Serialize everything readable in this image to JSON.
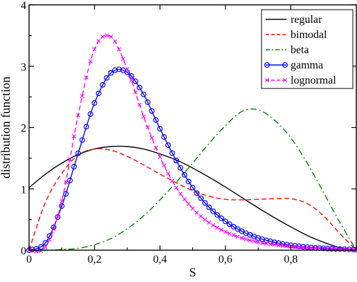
{
  "chart_data": {
    "type": "line",
    "xlabel": "S",
    "ylabel": "distribution function",
    "xlim": [
      0,
      1
    ],
    "ylim": [
      0,
      4
    ],
    "xticks": [
      {
        "value": 0,
        "label": "0"
      },
      {
        "value": 0.2,
        "label": "0,2"
      },
      {
        "value": 0.4,
        "label": "0,4"
      },
      {
        "value": 0.6,
        "label": "0,6"
      },
      {
        "value": 0.8,
        "label": "0,8"
      }
    ],
    "yticks": [
      {
        "value": 0,
        "label": "0"
      },
      {
        "value": 1,
        "label": "1"
      },
      {
        "value": 2,
        "label": "2"
      },
      {
        "value": 3,
        "label": "3"
      },
      {
        "value": 4,
        "label": "4"
      }
    ],
    "legend_position": "top-right",
    "grid": false,
    "series": [
      {
        "name": "regular",
        "color": "#000000",
        "dash": "solid",
        "marker": "none",
        "x": [
          0,
          0.05,
          0.1,
          0.15,
          0.2,
          0.25,
          0.3,
          0.35,
          0.4,
          0.45,
          0.5,
          0.55,
          0.6,
          0.65,
          0.7,
          0.75,
          0.8,
          0.85,
          0.9,
          0.95,
          1.0
        ],
        "y": [
          1.02,
          1.24,
          1.42,
          1.56,
          1.65,
          1.69,
          1.69,
          1.65,
          1.57,
          1.47,
          1.34,
          1.19,
          1.03,
          0.86,
          0.69,
          0.53,
          0.38,
          0.24,
          0.13,
          0.04,
          0.0
        ]
      },
      {
        "name": "bimodal",
        "color": "#ff0000",
        "dash": "dashed",
        "marker": "none",
        "x": [
          0,
          0.05,
          0.1,
          0.15,
          0.2,
          0.25,
          0.3,
          0.35,
          0.4,
          0.45,
          0.5,
          0.55,
          0.6,
          0.65,
          0.7,
          0.75,
          0.8,
          0.85,
          0.9,
          0.95,
          1.0
        ],
        "y": [
          0.0,
          0.78,
          1.25,
          1.55,
          1.65,
          1.63,
          1.53,
          1.39,
          1.24,
          1.1,
          0.97,
          0.88,
          0.83,
          0.82,
          0.83,
          0.84,
          0.84,
          0.76,
          0.56,
          0.27,
          0.0
        ]
      },
      {
        "name": "beta",
        "color": "#008000",
        "dash": "dashdot",
        "marker": "none",
        "x": [
          0,
          0.05,
          0.1,
          0.15,
          0.2,
          0.25,
          0.3,
          0.35,
          0.4,
          0.45,
          0.5,
          0.55,
          0.6,
          0.65,
          0.7,
          0.75,
          0.8,
          0.85,
          0.9,
          0.95,
          1.0
        ],
        "y": [
          0.0,
          0.0,
          0.01,
          0.03,
          0.09,
          0.19,
          0.35,
          0.56,
          0.82,
          1.11,
          1.42,
          1.74,
          2.03,
          2.26,
          2.29,
          2.12,
          1.83,
          1.42,
          0.94,
          0.45,
          0.0
        ]
      },
      {
        "name": "gamma",
        "color": "#0000ff",
        "dash": "solid",
        "marker": "circle",
        "x": [
          0,
          0.05,
          0.1,
          0.15,
          0.2,
          0.25,
          0.3,
          0.35,
          0.4,
          0.45,
          0.5,
          0.55,
          0.6,
          0.65,
          0.7,
          0.75,
          0.8,
          0.85,
          0.9,
          0.95,
          1.0
        ],
        "y": [
          0.0,
          0.12,
          0.72,
          1.58,
          2.4,
          2.89,
          2.9,
          2.54,
          1.98,
          1.46,
          1.02,
          0.7,
          0.47,
          0.31,
          0.2,
          0.13,
          0.08,
          0.05,
          0.03,
          0.02,
          0.01
        ]
      },
      {
        "name": "lognormal",
        "color": "#ff00ff",
        "dash": "dashed",
        "marker": "x",
        "x": [
          0,
          0.05,
          0.1,
          0.15,
          0.2,
          0.25,
          0.3,
          0.35,
          0.4,
          0.45,
          0.5,
          0.55,
          0.6,
          0.65,
          0.7,
          0.75,
          0.8,
          0.85,
          0.9,
          0.95,
          1.0
        ],
        "y": [
          0.0,
          0.05,
          0.8,
          2.2,
          3.28,
          3.48,
          2.95,
          2.18,
          1.52,
          1.02,
          0.68,
          0.45,
          0.3,
          0.2,
          0.13,
          0.09,
          0.06,
          0.04,
          0.03,
          0.02,
          0.01
        ]
      }
    ]
  }
}
